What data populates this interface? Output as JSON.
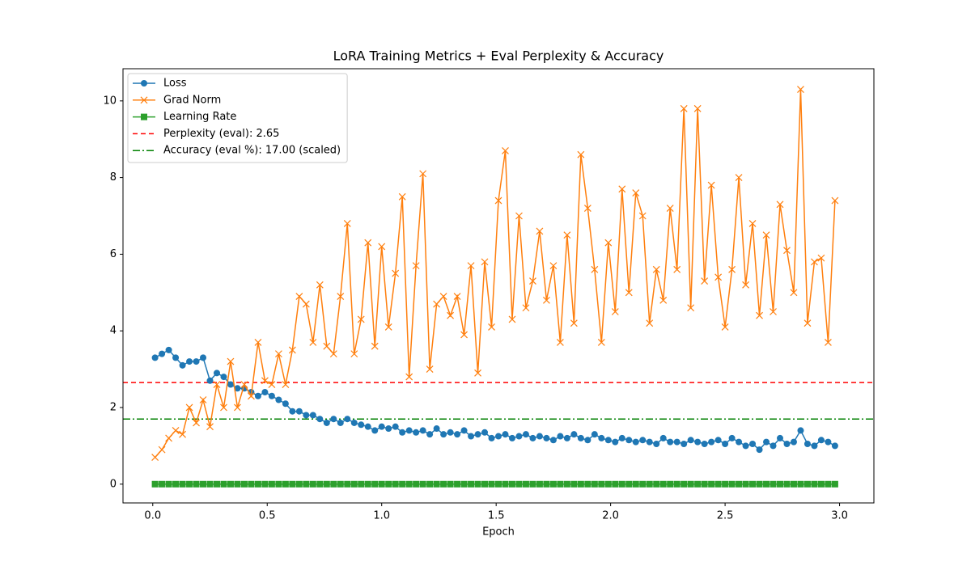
{
  "chart_data": {
    "type": "line",
    "title": "LoRA Training Metrics + Eval Perplexity & Accuracy",
    "xlabel": "Epoch",
    "x": [
      0.01,
      0.04,
      0.07,
      0.1,
      0.13,
      0.16,
      0.19,
      0.22,
      0.25,
      0.28,
      0.31,
      0.34,
      0.37,
      0.4,
      0.43,
      0.46,
      0.49,
      0.52,
      0.55,
      0.58,
      0.61,
      0.64,
      0.67,
      0.7,
      0.73,
      0.76,
      0.79,
      0.82,
      0.85,
      0.88,
      0.91,
      0.94,
      0.97,
      1.0,
      1.03,
      1.06,
      1.09,
      1.12,
      1.15,
      1.18,
      1.21,
      1.24,
      1.27,
      1.3,
      1.33,
      1.36,
      1.39,
      1.42,
      1.45,
      1.48,
      1.51,
      1.54,
      1.57,
      1.6,
      1.63,
      1.66,
      1.69,
      1.72,
      1.75,
      1.78,
      1.81,
      1.84,
      1.87,
      1.9,
      1.93,
      1.96,
      1.99,
      2.02,
      2.05,
      2.08,
      2.11,
      2.14,
      2.17,
      2.2,
      2.23,
      2.26,
      2.29,
      2.32,
      2.35,
      2.38,
      2.41,
      2.44,
      2.47,
      2.5,
      2.53,
      2.56,
      2.59,
      2.62,
      2.65,
      2.68,
      2.71,
      2.74,
      2.77,
      2.8,
      2.83,
      2.86,
      2.89,
      2.92,
      2.95,
      2.98
    ],
    "series": [
      {
        "name": "Loss",
        "color": "#1f77b4",
        "marker": "o",
        "values": [
          3.3,
          3.4,
          3.5,
          3.3,
          3.1,
          3.2,
          3.2,
          3.3,
          2.7,
          2.9,
          2.8,
          2.6,
          2.5,
          2.5,
          2.4,
          2.3,
          2.4,
          2.3,
          2.2,
          2.1,
          1.9,
          1.9,
          1.8,
          1.8,
          1.7,
          1.6,
          1.7,
          1.6,
          1.7,
          1.6,
          1.55,
          1.5,
          1.4,
          1.5,
          1.45,
          1.5,
          1.35,
          1.4,
          1.35,
          1.4,
          1.3,
          1.45,
          1.3,
          1.35,
          1.3,
          1.4,
          1.25,
          1.3,
          1.35,
          1.2,
          1.25,
          1.3,
          1.2,
          1.25,
          1.3,
          1.2,
          1.25,
          1.2,
          1.15,
          1.25,
          1.2,
          1.3,
          1.2,
          1.15,
          1.3,
          1.2,
          1.15,
          1.1,
          1.2,
          1.15,
          1.1,
          1.15,
          1.1,
          1.05,
          1.2,
          1.1,
          1.1,
          1.05,
          1.15,
          1.1,
          1.05,
          1.1,
          1.15,
          1.05,
          1.2,
          1.1,
          1.0,
          1.05,
          0.9,
          1.1,
          1.0,
          1.2,
          1.05,
          1.1,
          1.4,
          1.05,
          1.0,
          1.15,
          1.1,
          1.0
        ]
      },
      {
        "name": "Grad Norm",
        "color": "#ff7f0e",
        "marker": "x",
        "values": [
          0.7,
          0.9,
          1.2,
          1.4,
          1.3,
          2.0,
          1.6,
          2.2,
          1.5,
          2.6,
          2.0,
          3.2,
          2.0,
          2.6,
          2.3,
          3.7,
          2.7,
          2.6,
          3.4,
          2.6,
          3.5,
          4.9,
          4.7,
          3.7,
          5.2,
          3.6,
          3.4,
          4.9,
          6.8,
          3.4,
          4.3,
          6.3,
          3.6,
          6.2,
          4.1,
          5.5,
          7.5,
          2.8,
          5.7,
          8.1,
          3.0,
          4.7,
          4.9,
          4.4,
          4.9,
          3.9,
          5.7,
          2.9,
          5.8,
          4.1,
          7.4,
          8.7,
          4.3,
          7.0,
          4.6,
          5.3,
          6.6,
          4.8,
          5.7,
          3.7,
          6.5,
          4.2,
          8.6,
          7.2,
          5.6,
          3.7,
          6.3,
          4.5,
          7.7,
          5.0,
          7.6,
          7.0,
          4.2,
          5.6,
          4.8,
          7.2,
          5.6,
          9.8,
          4.6,
          9.8,
          5.3,
          7.8,
          5.4,
          4.1,
          5.6,
          8.0,
          5.2,
          6.8,
          4.4,
          6.5,
          4.5,
          7.3,
          6.1,
          5.0,
          10.3,
          4.2,
          5.8,
          5.9,
          3.7,
          7.4
        ]
      },
      {
        "name": "Learning Rate",
        "color": "#2ca02c",
        "marker": "s",
        "values": [
          0.0002,
          0.0002,
          0.0002,
          0.0002,
          0.0002,
          0.0002,
          0.0002,
          0.0002,
          0.0002,
          0.0002,
          0.0002,
          0.0002,
          0.0002,
          0.0002,
          0.0002,
          0.0002,
          0.0002,
          0.0002,
          0.0002,
          0.0002,
          0.0002,
          0.0002,
          0.0002,
          0.0002,
          0.0002,
          0.0002,
          0.0002,
          0.0002,
          0.0002,
          0.0002,
          0.0002,
          0.0002,
          0.0002,
          0.0002,
          0.0002,
          0.0002,
          0.0002,
          0.0002,
          0.0002,
          0.0002,
          0.0002,
          0.0002,
          0.0002,
          0.0002,
          0.0002,
          0.0002,
          0.0002,
          0.0002,
          0.0002,
          0.0002,
          0.0002,
          0.0002,
          0.0002,
          0.0002,
          0.0002,
          0.0002,
          0.0002,
          0.0002,
          0.0002,
          0.0002,
          0.0002,
          0.0002,
          0.0002,
          0.0002,
          0.0002,
          0.0002,
          0.0002,
          0.0002,
          0.0002,
          0.0002,
          0.0002,
          0.0002,
          0.0002,
          0.0002,
          0.0002,
          0.0002,
          0.0002,
          0.0002,
          0.0002,
          0.0002,
          0.0002,
          0.0002,
          0.0002,
          0.0002,
          0.0002,
          0.0002,
          0.0002,
          0.0002,
          0.0002,
          0.0002,
          0.0002,
          0.0002,
          0.0002,
          0.0002,
          0.0002,
          0.0002,
          0.0002,
          0.0002,
          0.0002,
          0.0002
        ]
      }
    ],
    "hlines": [
      {
        "name": "Perplexity (eval): 2.65",
        "value": 2.65,
        "color": "#ff0000",
        "style": "dashed"
      },
      {
        "name": "Accuracy (eval %): 17.00 (scaled)",
        "value": 1.7,
        "color": "#008000",
        "style": "dashdot"
      }
    ],
    "xlim": [
      -0.13,
      3.15
    ],
    "ylim": [
      -0.49,
      10.84
    ],
    "xticks": [
      {
        "value": 0,
        "label": "0.0"
      },
      0.5,
      {
        "value": 1,
        "label": "1.0"
      },
      1.5,
      {
        "value": 2,
        "label": "2.0"
      },
      2.5,
      {
        "value": 3,
        "label": "3.0"
      }
    ],
    "yticks": [
      0,
      2,
      4,
      6,
      8,
      10
    ],
    "legend": "upper left"
  }
}
